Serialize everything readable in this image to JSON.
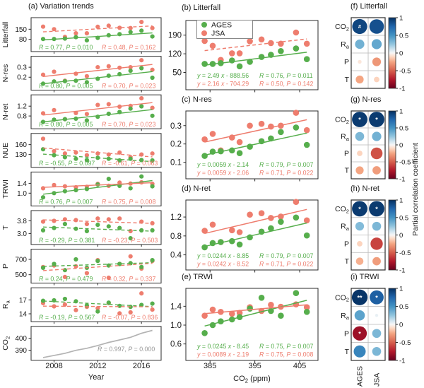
{
  "figure": {
    "colors": {
      "ages": "#56ae4c",
      "jsa": "#ee7d6e",
      "co2_line": "#b3b3b3",
      "gray_text": "#969696",
      "axis": "#2b2b2b",
      "grid": "#b8b8b8",
      "text": "#1a1a1a"
    },
    "series_names": [
      "AGES",
      "JSA"
    ]
  },
  "chart_data": {
    "type": [
      "scatter",
      "line",
      "heatmap"
    ],
    "x_years": [
      2007,
      2008,
      2009,
      2010,
      2011,
      2012,
      2013,
      2014,
      2015,
      2016,
      2017
    ],
    "co2_ppm": [
      383.8,
      385.6,
      387.4,
      389.9,
      391.6,
      393.9,
      396.5,
      398.6,
      400.8,
      404.2,
      406.6
    ],
    "measurements": {
      "Litterfall": {
        "AGES": [
          82,
          82,
          85,
          95,
          73,
          90,
          108,
          116,
          130,
          140,
          100
        ],
        "JSA": [
          168,
          150,
          97,
          122,
          122,
          167,
          174,
          160,
          158,
          200,
          158
        ]
      },
      "N-res": {
        "AGES": [
          0.135,
          0.158,
          0.16,
          0.165,
          0.15,
          0.185,
          0.215,
          0.23,
          0.265,
          0.29,
          0.195
        ],
        "JSA": [
          0.225,
          0.255,
          0.165,
          0.235,
          0.21,
          0.3,
          0.31,
          0.295,
          0.3,
          0.37,
          0.275
        ]
      },
      "N-ret": {
        "AGES": [
          0.56,
          0.65,
          0.67,
          0.69,
          0.62,
          0.77,
          0.89,
          0.96,
          1.1,
          1.19,
          0.81
        ],
        "JSA": [
          0.91,
          1.04,
          0.67,
          0.92,
          0.88,
          1.25,
          1.28,
          1.18,
          1.21,
          1.52,
          1.13
        ]
      },
      "NUE": {
        "AGES": [
          146,
          128,
          122,
          117,
          113,
          120,
          117,
          112,
          117,
          113,
          112
        ],
        "JSA": [
          178,
          140,
          133,
          136,
          128,
          133,
          130,
          136,
          122,
          130,
          133
        ]
      },
      "TRWI": {
        "AGES": [
          0.83,
          1.0,
          1.08,
          1.12,
          1.17,
          1.35,
          1.58,
          1.3,
          1.2,
          1.68,
          1.28
        ],
        "JSA": [
          1.2,
          1.33,
          1.28,
          1.24,
          1.26,
          1.38,
          1.3,
          1.43,
          1.39,
          1.44,
          1.38
        ]
      },
      "T": {
        "AGES": [
          3.2,
          3.35,
          3.6,
          3.3,
          3.15,
          3.55,
          3.45,
          3.35,
          2.7,
          3.2,
          3.2
        ],
        "JSA": [
          3.75,
          3.8,
          3.9,
          3.85,
          3.6,
          3.95,
          3.9,
          3.95,
          3.15,
          3.75,
          3.65
        ]
      },
      "P": {
        "AGES": [
          590,
          640,
          560,
          700,
          590,
          680,
          620,
          640,
          650,
          600,
          690
        ],
        "JSA": [
          600,
          620,
          470,
          610,
          520,
          690,
          460,
          640,
          740,
          580,
          680
        ]
      },
      "R_a": {
        "AGES": [
          16.8,
          16.9,
          17.2,
          16.7,
          15.8,
          14.5,
          16.4,
          15.7,
          15.5,
          15.9,
          16.2
        ],
        "JSA": [
          16.3,
          15.6,
          16.0,
          14.8,
          15.5,
          15.2,
          16.3,
          14.1,
          14.3,
          18.4,
          14.9
        ]
      }
    },
    "left_panel": {
      "title": "(a) Variation trends",
      "xlabel": "Year",
      "x_ticks": [
        [
          2008,
          "2008"
        ],
        [
          2012,
          "2012"
        ],
        [
          2016,
          "2016"
        ]
      ],
      "xlim": [
        2005.9,
        2017.8
      ],
      "rows": [
        {
          "var": "Litterfall",
          "label": "Litterfall",
          "yticks": [
            [
              150,
              "150"
            ],
            [
              80,
              "80"
            ]
          ],
          "ylim": [
            -5,
            230
          ],
          "series": [
            {
              "name": "AGES",
              "line": "solid",
              "stat": "R = 0.77, P = 0.010"
            },
            {
              "name": "JSA",
              "line": "dashed",
              "stat": "R = 0.48, P = 0.162"
            }
          ]
        },
        {
          "var": "N-res",
          "label": "N-res",
          "yticks": [
            [
              0.3,
              "0.3"
            ],
            [
              0.2,
              "0.2"
            ]
          ],
          "ylim": [
            0.07,
            0.41
          ],
          "series": [
            {
              "name": "AGES",
              "line": "solid",
              "stat": "R = 0.80, P = 0.005"
            },
            {
              "name": "JSA",
              "line": "solid",
              "stat": "R = 0.70, P = 0.023"
            }
          ]
        },
        {
          "var": "N-ret",
          "label": "N-ret",
          "yticks": [
            [
              1.2,
              "1.2"
            ],
            [
              0.8,
              "0.8"
            ]
          ],
          "ylim": [
            0.28,
            1.66
          ],
          "series": [
            {
              "name": "AGES",
              "line": "solid",
              "stat": "R = 0.80, P = 0.005"
            },
            {
              "name": "JSA",
              "line": "solid",
              "stat": "R = 0.70, P = 0.023"
            }
          ]
        },
        {
          "var": "NUE",
          "label": "NUE",
          "yticks": [
            [
              160,
              "160"
            ],
            [
              130,
              "130"
            ]
          ],
          "ylim": [
            91,
            194
          ],
          "series": [
            {
              "name": "AGES",
              "line": "dashed",
              "stat": "R = -0.55, P = 0.097"
            },
            {
              "name": "JSA",
              "line": "dashed",
              "stat": "R = -0.61, P = 0.063"
            }
          ]
        },
        {
          "var": "TRWI",
          "label": "TRWI",
          "yticks": [
            [
              1.4,
              "1.4"
            ],
            [
              1.0,
              "1.0"
            ]
          ],
          "ylim": [
            0.48,
            1.86
          ],
          "series": [
            {
              "name": "AGES",
              "line": "solid",
              "stat": "R = 0.76, P = 0.007"
            },
            {
              "name": "JSA",
              "line": "solid",
              "stat": "R = 0.75, P = 0.008"
            }
          ]
        },
        {
          "var": "T",
          "label": "T",
          "yticks": [
            [
              3.8,
              "3.8"
            ],
            [
              3.0,
              "3.0"
            ]
          ],
          "ylim": [
            2.3,
            4.45
          ],
          "series": [
            {
              "name": "AGES",
              "line": "dashed",
              "stat": "R = -0.29, P = 0.381"
            },
            {
              "name": "JSA",
              "line": "dashed",
              "stat": "R = -0.23, P = 0.503"
            }
          ]
        },
        {
          "var": "P",
          "label": "P",
          "yticks": [
            [
              700,
              "700"
            ],
            [
              500,
              "500"
            ]
          ],
          "ylim": [
            390,
            833
          ],
          "series": [
            {
              "name": "AGES",
              "line": "dashed",
              "stat": "R = 0.24, P = 0.479"
            },
            {
              "name": "JSA",
              "line": "dashed",
              "stat": "R = 0.32, P = 0.337"
            }
          ]
        },
        {
          "var": "R_a",
          "label": "R_a",
          "yticks": [
            [
              17,
              "17"
            ],
            [
              14,
              "14"
            ]
          ],
          "ylim": [
            12.3,
            19.6
          ],
          "series": [
            {
              "name": "AGES",
              "line": "dashed",
              "stat": "R = -0.19, P = 0.567"
            },
            {
              "name": "JSA",
              "line": "dashed",
              "stat": "R = -0.07, P = 0.836"
            }
          ]
        },
        {
          "var": "CO2_LINE",
          "label": "CO_2",
          "yticks": [
            [
              400,
              "400"
            ],
            [
              390,
              "390"
            ]
          ],
          "ylim": [
            381.5,
            410
          ],
          "stat": "R = 0.997, P = 0.000"
        }
      ]
    },
    "co2_panels": {
      "xlabel": "CO_2 (ppm)",
      "x_ticks": [
        [
          385,
          "385"
        ],
        [
          395,
          "395"
        ],
        [
          405,
          "405"
        ]
      ],
      "xlim": [
        379.6,
        409.1
      ],
      "legend": [
        "AGES",
        "JSA"
      ],
      "panels": [
        {
          "id": "b",
          "title": "(b) Litterfall",
          "var": "Litterfall",
          "show_legend": true,
          "yticks": [
            [
              190,
              "190"
            ],
            [
              120,
              "120"
            ],
            [
              50,
              "50"
            ]
          ],
          "ylim": [
            -15,
            245
          ],
          "series": [
            {
              "name": "AGES",
              "line": "solid",
              "eq": "y = 2.49 x - 888.56",
              "stat": "R = 0.76, P = 0.011"
            },
            {
              "name": "JSA",
              "line": "dashed",
              "eq": "y = 2.16 x - 704.29",
              "stat": "R = 0.50, P = 0.142"
            }
          ]
        },
        {
          "id": "c",
          "title": "(c) N-res",
          "var": "N-res",
          "show_legend": false,
          "yticks": [
            [
              0.3,
              "0.3"
            ],
            [
              0.2,
              "0.2"
            ],
            [
              0.1,
              "0.1"
            ]
          ],
          "ylim": [
            0.01,
            0.38
          ],
          "series": [
            {
              "name": "AGES",
              "line": "solid",
              "eq": "y = 0.0059 x - 2.14",
              "stat": "R = 0.79, P = 0.007"
            },
            {
              "name": "JSA",
              "line": "solid",
              "eq": "y = 0.0059 x - 2.06",
              "stat": "R = 0.71, P = 0.022"
            }
          ]
        },
        {
          "id": "d",
          "title": "(d) N-ret",
          "var": "N-ret",
          "show_legend": false,
          "yticks": [
            [
              1.2,
              "1.2"
            ],
            [
              0.8,
              "0.8"
            ],
            [
              0.4,
              "0.4"
            ]
          ],
          "ylim": [
            0.08,
            1.56
          ],
          "series": [
            {
              "name": "AGES",
              "line": "solid",
              "eq": "y = 0.0244 x - 8.85",
              "stat": "R = 0.79, P = 0.007"
            },
            {
              "name": "JSA",
              "line": "solid",
              "eq": "y = 0.0242 x - 8.52",
              "stat": "R = 0.71, P = 0.022"
            }
          ]
        },
        {
          "id": "e",
          "title": "(e) TRWI",
          "var": "TRWI",
          "show_legend": false,
          "yticks": [
            [
              1.4,
              "1.4"
            ],
            [
              1.0,
              "1.0"
            ],
            [
              0.6,
              "0.6"
            ]
          ],
          "ylim": [
            0.25,
            1.78
          ],
          "series": [
            {
              "name": "AGES",
              "line": "solid",
              "eq": "y = 0.0245 x - 8.45",
              "stat": "R = 0.75, P = 0.007"
            },
            {
              "name": "JSA",
              "line": "solid",
              "eq": "y = 0.0089 x - 2.19",
              "stat": "R = 0.75, P = 0.008"
            }
          ]
        }
      ]
    },
    "correlation_panels": {
      "rows": [
        "CO_2",
        "R_a",
        "P",
        "T"
      ],
      "cols": [
        "AGES",
        "JSA"
      ],
      "panels": [
        {
          "id": "f",
          "title": "(f) Litterfall",
          "values": [
            [
              0.9,
              0.85
            ],
            [
              0.35,
              0.4
            ],
            [
              -0.06,
              -0.3
            ],
            [
              -0.25,
              -0.12
            ]
          ],
          "markers": [
            [
              "#",
              ""
            ],
            [
              "",
              ""
            ],
            [
              "",
              ""
            ],
            [
              "",
              ""
            ]
          ]
        },
        {
          "id": "g",
          "title": "(g) N-res",
          "values": [
            [
              0.95,
              0.95
            ],
            [
              0.32,
              0.35
            ],
            [
              -0.12,
              -0.55
            ],
            [
              -0.25,
              -0.28
            ]
          ],
          "markers": [
            [
              "*",
              "*"
            ],
            [
              "",
              ""
            ],
            [
              "",
              ""
            ],
            [
              "",
              ""
            ]
          ]
        },
        {
          "id": "h",
          "title": "(h) N-ret",
          "values": [
            [
              0.95,
              0.95
            ],
            [
              0.3,
              0.32
            ],
            [
              -0.12,
              -0.6
            ],
            [
              -0.22,
              -0.28
            ]
          ],
          "markers": [
            [
              "*",
              "*"
            ],
            [
              "",
              ""
            ],
            [
              "",
              ""
            ],
            [
              "",
              ""
            ]
          ]
        },
        {
          "id": "i",
          "title": "(i) TRWI",
          "values": [
            [
              0.98,
              0.78
            ],
            [
              0.42,
              0.04
            ],
            [
              -0.82,
              0.32
            ],
            [
              0.58,
              0.32
            ]
          ],
          "markers": [
            [
              "**",
              "*"
            ],
            [
              "",
              ""
            ],
            [
              "*",
              ""
            ],
            [
              "",
              ""
            ]
          ]
        }
      ],
      "colorbar": {
        "ticks": [
          [
            1,
            "1"
          ],
          [
            0.5,
            "0.5"
          ],
          [
            0,
            "0"
          ],
          [
            -0.5,
            "-0.5"
          ],
          [
            -1,
            "-1"
          ]
        ],
        "label": "Partial correlation coefficient"
      }
    }
  }
}
